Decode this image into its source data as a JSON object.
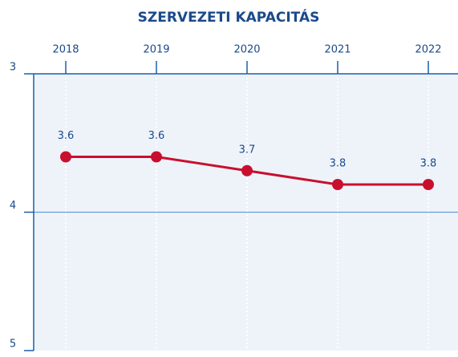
{
  "chart_data": {
    "type": "line",
    "title": "SZERVEZETI KAPACITÁS",
    "categories": [
      "2018",
      "2019",
      "2020",
      "2021",
      "2022"
    ],
    "series": [
      {
        "name": "Szervezeti kapacitás",
        "color": "#c8102e",
        "values": [
          3.6,
          3.6,
          3.7,
          3.8,
          3.8
        ]
      }
    ],
    "ylim": [
      3,
      5
    ],
    "yticks": [
      3,
      4,
      5
    ],
    "y_inverted": true,
    "x_axis_position": "top",
    "grid": true
  }
}
